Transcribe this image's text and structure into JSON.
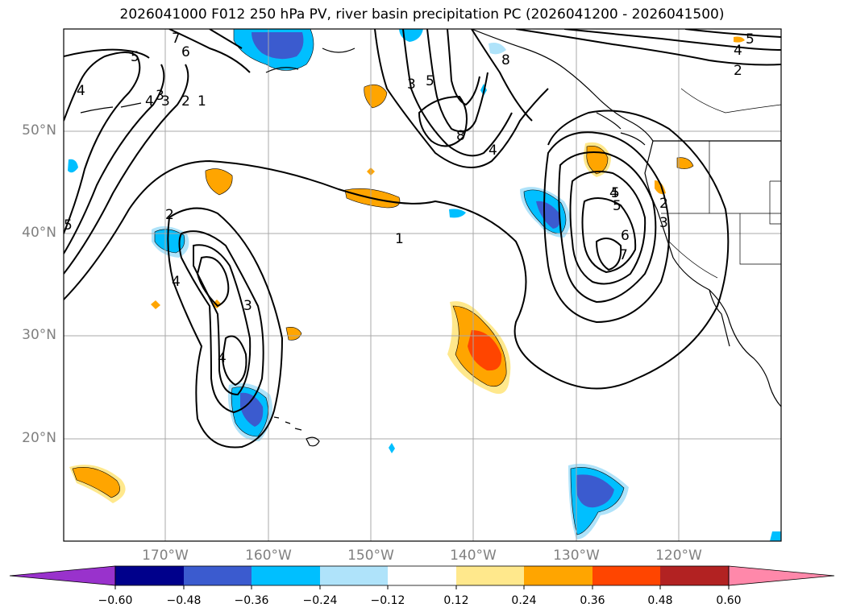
{
  "title": "2026041000 F012 250 hPa PV, river basin precipitation PC (2026041200 - 2026041500)",
  "map": {
    "latitude_labels": [
      "50°N",
      "40°N",
      "30°N",
      "20°N"
    ],
    "longitude_labels": [
      "170°W",
      "160°W",
      "150°W",
      "140°W",
      "130°W",
      "120°W"
    ],
    "pv_contour_labels": [
      "7",
      "6",
      "5",
      "4",
      "3",
      "2",
      "1",
      "5",
      "4",
      "3",
      "2",
      "1",
      "3",
      "5",
      "8",
      "8",
      "4",
      "5",
      "4",
      "2",
      "3",
      "4",
      "5",
      "6",
      "7",
      "2",
      "4",
      "3",
      "4",
      "5"
    ],
    "colors": {
      "land_outline": "#000000",
      "grid": "#a8a8a8"
    }
  },
  "colorbar": {
    "ticks": [
      "−0.60",
      "−0.48",
      "−0.36",
      "−0.24",
      "−0.12",
      "0.12",
      "0.24",
      "0.36",
      "0.48",
      "0.60"
    ],
    "colors": [
      "#9932cc",
      "#00008b",
      "#3b5bcf",
      "#00bfff",
      "#afe3fa",
      "#ffffff",
      "#ffe88c",
      "#ffa500",
      "#ff4500",
      "#b22222",
      "#ff88aa"
    ]
  }
}
